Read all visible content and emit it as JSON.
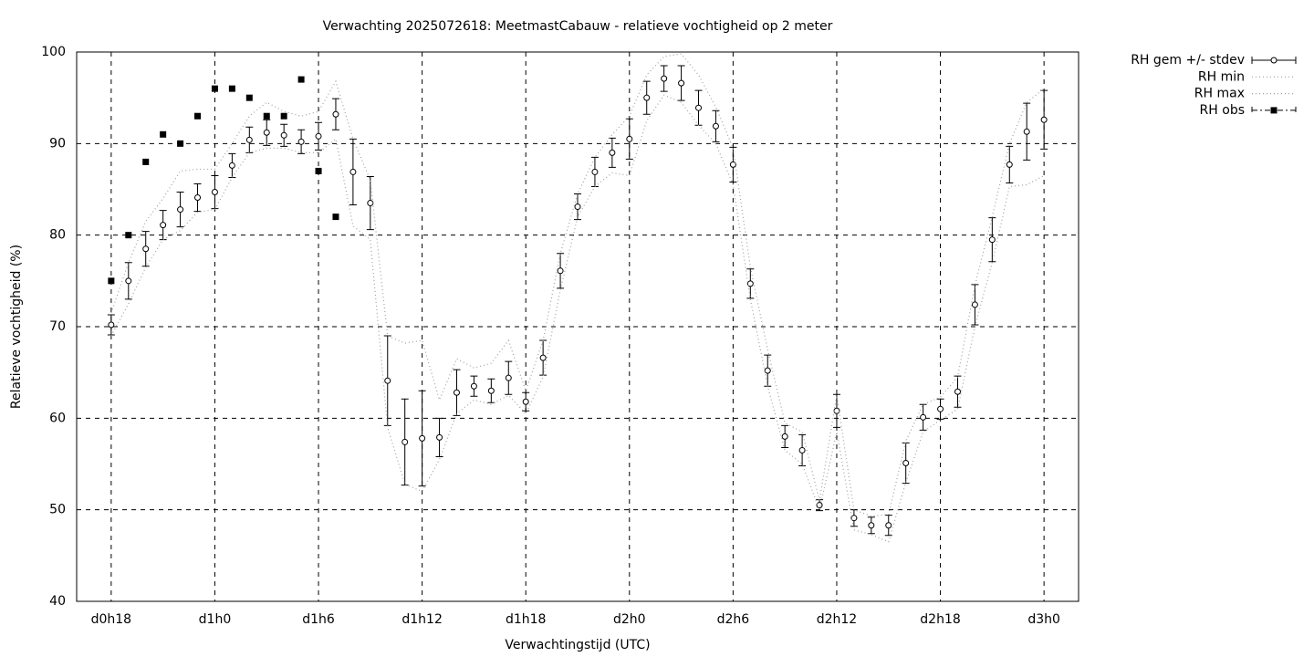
{
  "chart_data": {
    "type": "line",
    "title": "Verwachting 2025072618: MeetmastCabauw - relatieve vochtigheid op 2 meter",
    "xlabel": "Verwachtingstijd (UTC)",
    "ylabel": "Relatieve vochtigheid (%)",
    "x": [
      18,
      19,
      20,
      21,
      22,
      23,
      24,
      25,
      26,
      27,
      28,
      29,
      30,
      31,
      32,
      33,
      34,
      35,
      36,
      37,
      38,
      39,
      40,
      41,
      42,
      43,
      44,
      45,
      46,
      47,
      48,
      49,
      50,
      51,
      52,
      53,
      54,
      55,
      56,
      57,
      58,
      59,
      60,
      61,
      62,
      63,
      64,
      65,
      66,
      67,
      68,
      69,
      70,
      71,
      72
    ],
    "xlim": [
      16,
      74
    ],
    "xticks": [
      {
        "value": 18,
        "label": "d0h18"
      },
      {
        "value": 24,
        "label": "d1h0"
      },
      {
        "value": 30,
        "label": "d1h6"
      },
      {
        "value": 36,
        "label": "d1h12"
      },
      {
        "value": 42,
        "label": "d1h18"
      },
      {
        "value": 48,
        "label": "d2h0"
      },
      {
        "value": 54,
        "label": "d2h6"
      },
      {
        "value": 60,
        "label": "d2h12"
      },
      {
        "value": 66,
        "label": "d2h18"
      },
      {
        "value": 72,
        "label": "d3h0"
      }
    ],
    "ylim": [
      40,
      100
    ],
    "yticks": [
      40,
      50,
      60,
      70,
      80,
      90,
      100
    ],
    "grid": true,
    "legend": "outside-top-right",
    "series": [
      {
        "name": "RH gem +/- stdev",
        "style": "errorbar",
        "color": "#000000",
        "values": [
          70.2,
          75,
          78.5,
          81.1,
          82.8,
          84.1,
          84.7,
          87.6,
          90.4,
          91.2,
          90.9,
          90.2,
          90.8,
          93.2,
          86.9,
          83.5,
          64.1,
          57.4,
          57.8,
          57.9,
          62.8,
          63.5,
          63,
          64.4,
          61.8,
          66.6,
          76.1,
          83.1,
          86.9,
          89,
          90.5,
          95,
          97.1,
          96.6,
          93.9,
          91.9,
          87.7,
          74.7,
          65.2,
          58,
          56.5,
          50.5,
          60.8,
          49.1,
          48.3,
          48.3,
          55.1,
          60.1,
          61,
          62.9,
          72.4,
          79.5,
          87.7,
          91.3,
          92.6
        ],
        "errors": [
          1.1,
          2,
          1.9,
          1.6,
          1.9,
          1.5,
          1.8,
          1.3,
          1.4,
          1.4,
          1.2,
          1.3,
          1.5,
          1.7,
          3.6,
          2.9,
          4.9,
          4.7,
          5.2,
          2.1,
          2.5,
          1.1,
          1.3,
          1.8,
          1,
          1.9,
          1.9,
          1.4,
          1.6,
          1.6,
          2.2,
          1.8,
          1.4,
          1.9,
          1.9,
          1.7,
          1.9,
          1.6,
          1.7,
          1.2,
          1.7,
          0.6,
          1.8,
          0.9,
          0.9,
          1.1,
          2.2,
          1.4,
          1.1,
          1.7,
          2.2,
          2.4,
          2,
          3.1,
          3.2
        ]
      },
      {
        "name": "RH min",
        "style": "dotted",
        "color": "#a0a0a0",
        "values": [
          69,
          72.5,
          76.5,
          79.5,
          80.5,
          82.5,
          82.8,
          86.3,
          89,
          89.5,
          89.5,
          89,
          89,
          90.5,
          81,
          79.5,
          59,
          52.8,
          52,
          55.5,
          60.5,
          62,
          61.5,
          62.5,
          60.5,
          64.5,
          74,
          82,
          85.3,
          86.8,
          86.5,
          92.5,
          95.3,
          94.5,
          92,
          90,
          85.5,
          73,
          63.5,
          56.5,
          55,
          50,
          58.5,
          47.8,
          47.3,
          46.5,
          53,
          58.5,
          59.8,
          61,
          70,
          77,
          85.3,
          85.5,
          86.5
        ]
      },
      {
        "name": "RH max",
        "style": "dotted",
        "color": "#a0a0a0",
        "values": [
          71.5,
          77,
          81.5,
          84,
          87,
          87.2,
          87.2,
          90,
          93,
          94.5,
          93.5,
          93,
          93.5,
          96.8,
          90.5,
          86,
          69,
          68.2,
          68.5,
          62,
          66.5,
          65.5,
          66,
          68.5,
          63,
          68.5,
          78,
          84.5,
          88.5,
          91,
          93,
          97.5,
          99.5,
          99.8,
          97.5,
          94,
          89.5,
          76.5,
          67.5,
          59.5,
          58.5,
          51,
          62.5,
          50,
          49.3,
          49.5,
          57.5,
          61.5,
          62.3,
          64.5,
          74.5,
          82,
          90,
          94.5,
          96
        ]
      },
      {
        "name": "RH obs",
        "style": "points",
        "color": "#000000",
        "values": [
          75,
          80,
          88,
          91,
          90,
          93,
          96,
          96,
          95,
          93,
          93,
          97,
          87,
          82,
          null,
          null,
          null,
          null,
          null,
          null,
          null,
          null,
          null,
          null,
          null,
          null,
          null,
          null,
          null,
          null,
          null,
          null,
          null,
          null,
          null,
          null,
          null,
          null,
          null,
          null,
          null,
          null,
          null,
          null,
          null,
          null,
          null,
          null,
          null,
          null,
          null,
          null,
          null,
          null,
          null
        ]
      }
    ]
  }
}
